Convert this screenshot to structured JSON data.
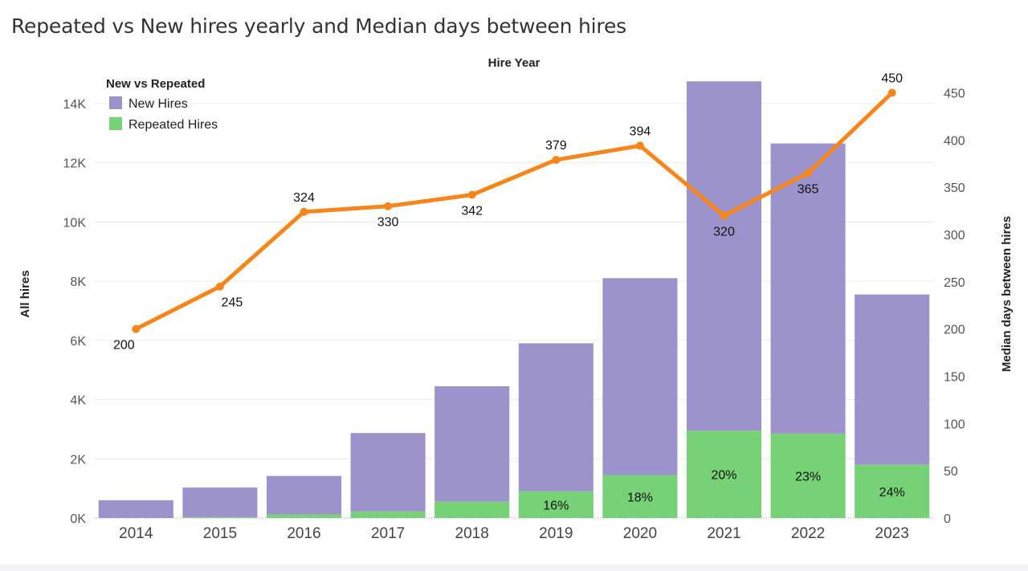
{
  "title": "Repeated vs New hires yearly and Median days between hires",
  "colors": {
    "new_hires": "#9d93cc",
    "repeated_hires": "#76d177",
    "median_line": "#f7861a",
    "grid": "#ececec"
  },
  "chart_data": {
    "type": "bar",
    "title": "Repeated vs New hires yearly and Median days between hires",
    "top_axis_label": "Hire Year",
    "xlabel": "",
    "ylabel": "All hires",
    "y2label": "Median days between hires",
    "categories": [
      "2014",
      "2015",
      "2016",
      "2017",
      "2018",
      "2019",
      "2020",
      "2021",
      "2022",
      "2023"
    ],
    "ylim": [
      0,
      15000
    ],
    "y_ticks": [
      0,
      2000,
      4000,
      6000,
      8000,
      10000,
      12000,
      14000
    ],
    "y_tick_labels": [
      "0K",
      "2K",
      "4K",
      "6K",
      "8K",
      "10K",
      "12K",
      "14K"
    ],
    "y2lim": [
      0,
      470
    ],
    "y2_ticks": [
      0,
      50,
      100,
      150,
      200,
      250,
      300,
      350,
      400,
      450
    ],
    "legend": {
      "title": "New vs Repeated",
      "position": "top-left"
    },
    "grid": true,
    "series": [
      {
        "name": "New Hires",
        "type": "bar",
        "stack": "hires",
        "values": [
          600,
          1000,
          1300,
          2650,
          3900,
          5000,
          6650,
          11800,
          9800,
          5750
        ]
      },
      {
        "name": "Repeated Hires",
        "type": "bar",
        "stack": "hires",
        "values": [
          0,
          30,
          120,
          220,
          550,
          900,
          1450,
          2950,
          2850,
          1800
        ],
        "labels": [
          "",
          "",
          "",
          "",
          "",
          "16%",
          "18%",
          "20%",
          "23%",
          "24%"
        ]
      },
      {
        "name": "Median days between hires",
        "type": "line",
        "axis": "y2",
        "values": [
          200,
          245,
          324,
          330,
          342,
          379,
          394,
          320,
          365,
          450
        ],
        "labels": [
          "200",
          "245",
          "324",
          "330",
          "342",
          "379",
          "394",
          "320",
          "365",
          "450"
        ]
      }
    ]
  }
}
